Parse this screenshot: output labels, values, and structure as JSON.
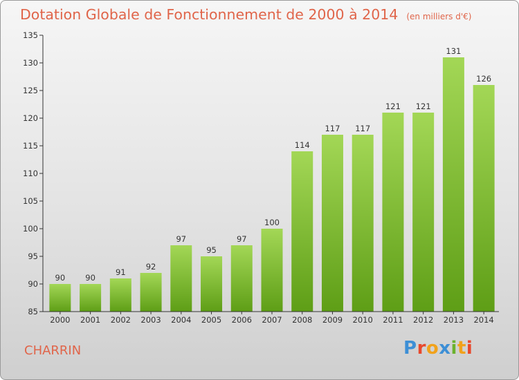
{
  "header": {
    "title": "Dotation Globale de Fonctionnement de 2000 à 2014",
    "subtitle": "(en milliers d'€)"
  },
  "footer": {
    "commune": "CHARRIN",
    "logo": "Proxiti"
  },
  "colors": {
    "title": "#e0654a",
    "bar_top": "#a3d756",
    "bar_bottom": "#5e9e16",
    "axis": "#333333"
  },
  "chart_data": {
    "type": "bar",
    "title": "Dotation Globale de Fonctionnement de 2000 à 2014",
    "subtitle": "(en milliers d'€)",
    "xlabel": "",
    "ylabel": "",
    "categories": [
      "2000",
      "2001",
      "2002",
      "2003",
      "2004",
      "2005",
      "2006",
      "2007",
      "2008",
      "2009",
      "2010",
      "2011",
      "2012",
      "2013",
      "2014"
    ],
    "values": [
      90,
      90,
      91,
      92,
      97,
      95,
      97,
      100,
      114,
      117,
      117,
      121,
      121,
      131,
      126
    ],
    "ylim": [
      85,
      135
    ],
    "yticks": [
      85,
      90,
      95,
      100,
      105,
      110,
      115,
      120,
      125,
      130,
      135
    ],
    "grid": false,
    "legend": "none"
  }
}
